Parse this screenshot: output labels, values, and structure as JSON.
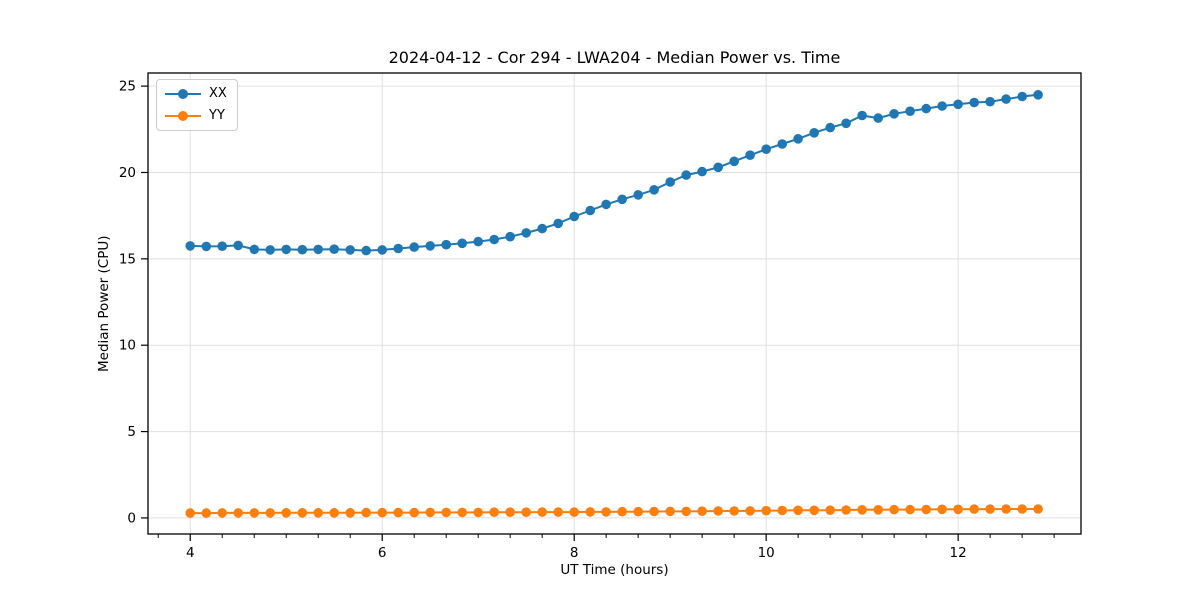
{
  "chart_data": {
    "type": "line",
    "title": "2024-04-12 - Cor 294 - LWA204 - Median Power vs. Time",
    "xlabel": "UT Time (hours)",
    "ylabel": "Median Power (CPU)",
    "xlim": [
      3.56,
      13.28
    ],
    "ylim": [
      -0.93,
      25.76
    ],
    "x_ticks": [
      4,
      6,
      8,
      10,
      12
    ],
    "x_minor_tick_step": 0.33333,
    "y_ticks": [
      0,
      5,
      10,
      15,
      20,
      25
    ],
    "grid": true,
    "grid_color": "#e0e0e0",
    "legend_position": "upper left",
    "x": [
      4.0,
      4.167,
      4.333,
      4.5,
      4.667,
      4.833,
      5.0,
      5.167,
      5.333,
      5.5,
      5.667,
      5.833,
      6.0,
      6.167,
      6.333,
      6.5,
      6.667,
      6.833,
      7.0,
      7.167,
      7.333,
      7.5,
      7.667,
      7.833,
      8.0,
      8.167,
      8.333,
      8.5,
      8.667,
      8.833,
      9.0,
      9.167,
      9.333,
      9.5,
      9.667,
      9.833,
      10.0,
      10.167,
      10.333,
      10.5,
      10.667,
      10.833,
      11.0,
      11.167,
      11.333,
      11.5,
      11.667,
      11.833,
      12.0,
      12.167,
      12.333,
      12.5,
      12.667,
      12.833
    ],
    "series": [
      {
        "name": "XX",
        "color": "#1f77b4",
        "values": [
          15.75,
          15.72,
          15.73,
          15.78,
          15.55,
          15.52,
          15.55,
          15.53,
          15.55,
          15.56,
          15.52,
          15.48,
          15.52,
          15.6,
          15.68,
          15.75,
          15.82,
          15.9,
          16.0,
          16.12,
          16.28,
          16.5,
          16.75,
          17.05,
          17.45,
          17.8,
          18.15,
          18.45,
          18.7,
          19.0,
          19.45,
          19.85,
          20.05,
          20.3,
          20.65,
          21.0,
          21.35,
          21.65,
          21.95,
          22.3,
          22.6,
          22.85,
          23.3,
          23.15,
          23.4,
          23.55,
          23.7,
          23.85,
          23.95,
          24.05,
          24.1,
          24.25,
          24.4,
          24.5
        ]
      },
      {
        "name": "YY",
        "color": "#ff7f0e",
        "values": [
          0.28,
          0.28,
          0.29,
          0.29,
          0.29,
          0.29,
          0.3,
          0.3,
          0.3,
          0.3,
          0.3,
          0.31,
          0.31,
          0.31,
          0.31,
          0.32,
          0.32,
          0.32,
          0.32,
          0.33,
          0.33,
          0.33,
          0.34,
          0.34,
          0.34,
          0.35,
          0.35,
          0.36,
          0.36,
          0.37,
          0.38,
          0.38,
          0.39,
          0.4,
          0.4,
          0.41,
          0.42,
          0.43,
          0.44,
          0.44,
          0.45,
          0.46,
          0.47,
          0.47,
          0.48,
          0.48,
          0.49,
          0.5,
          0.5,
          0.51,
          0.51,
          0.52,
          0.52,
          0.52
        ]
      }
    ]
  }
}
